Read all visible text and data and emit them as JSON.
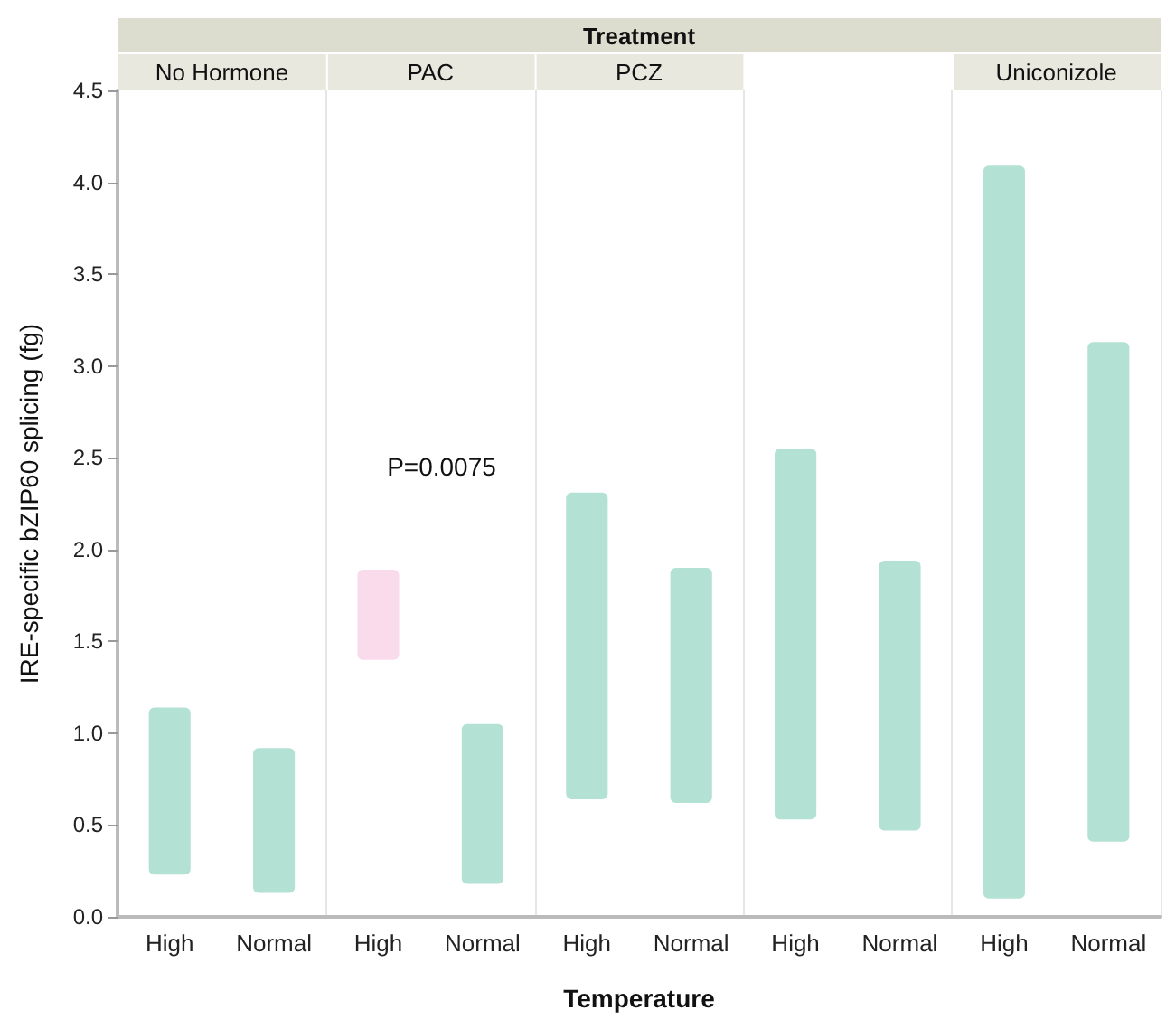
{
  "chart_data": {
    "type": "bar",
    "xlabel": "Temperature",
    "ylabel": "IRE-specific bZIP60 splicing (fg)",
    "categories": [
      "High",
      "Normal",
      "High",
      "Normal",
      "High",
      "Normal",
      "High",
      "Normal",
      "High",
      "Normal"
    ],
    "base": [
      0.23,
      0.13,
      1.4,
      0.18,
      0.64,
      0.62,
      0.53,
      0.47,
      0.1,
      0.41
    ],
    "values": [
      0.91,
      0.79,
      0.49,
      0.87,
      1.67,
      1.28,
      2.02,
      1.47,
      3.99,
      2.72
    ],
    "colors": [
      "#b3e2d5",
      "#b3e2d5",
      "#fadbec",
      "#b3e2d5",
      "#b3e2d5",
      "#b3e2d5",
      "#b3e2d5",
      "#b3e2d5",
      "#b3e2d5",
      "#b3e2d5"
    ],
    "ylim": [
      0,
      4.5
    ],
    "yticks": [
      {
        "value": 0,
        "label": "0.0"
      },
      {
        "value": 0.5,
        "label": "0.5"
      },
      {
        "value": 1,
        "label": "1.0"
      },
      {
        "value": 1.5,
        "label": "1.5"
      },
      {
        "value": 2,
        "label": "2.0"
      },
      {
        "value": 2.5,
        "label": "2.5"
      },
      {
        "value": 3,
        "label": "3.0"
      },
      {
        "value": 3.5,
        "label": "3.5"
      },
      {
        "value": 4,
        "label": "4.0"
      },
      {
        "value": 4.5,
        "label": "4.5"
      }
    ],
    "annotations": [
      "Treatment",
      "No Hormone",
      "PAC",
      "PCZ",
      "Uniconizole",
      "P=0.0075"
    ]
  }
}
